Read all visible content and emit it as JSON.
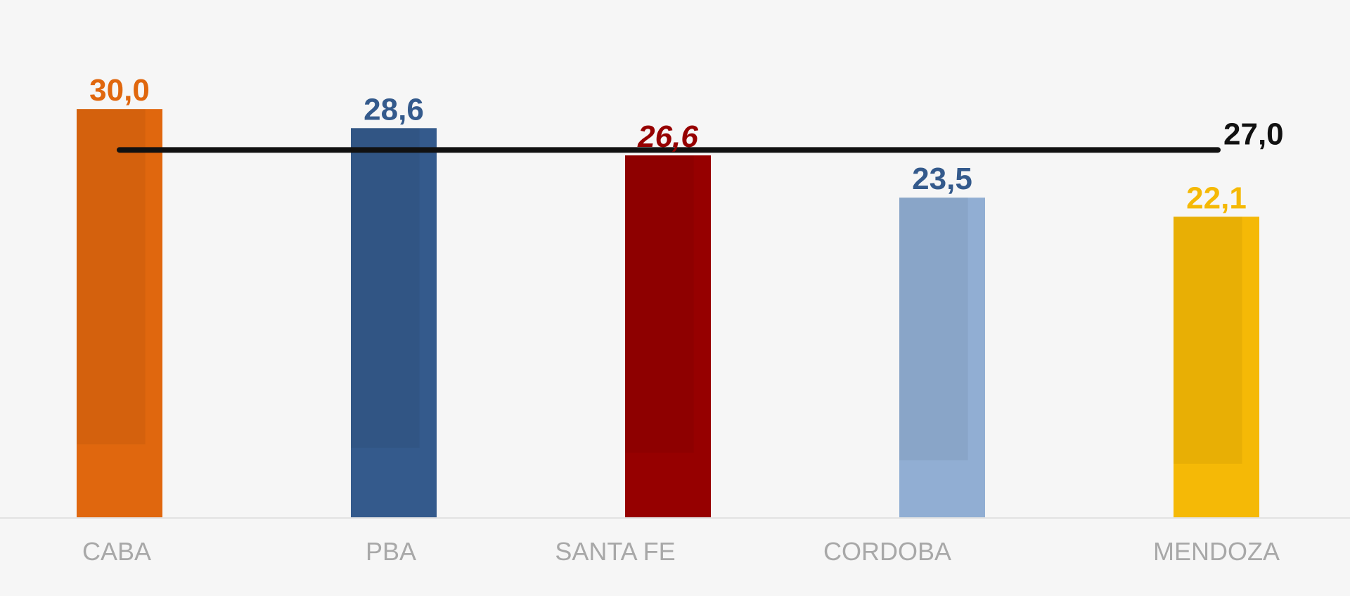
{
  "chart_data": {
    "type": "bar",
    "categories": [
      "CABA",
      "PBA",
      "SANTA FE",
      "CORDOBA",
      "MENDOZA"
    ],
    "values": [
      30.0,
      28.6,
      26.6,
      23.5,
      22.1
    ],
    "value_labels": [
      "30,0",
      "28,6",
      "26,6",
      "23,5",
      "22,1"
    ],
    "bar_colors": [
      "#e0670e",
      "#345a8c",
      "#960000",
      "#91aed3",
      "#f5b906"
    ],
    "label_colors": [
      "#e0670e",
      "#345a8c",
      "#960000",
      "#345a8c",
      "#f5b906"
    ],
    "label_italic": [
      false,
      false,
      true,
      false,
      false
    ],
    "reference_line": {
      "value": 27.0,
      "label": "27,0",
      "color": "#111111"
    },
    "ylim": [
      0,
      38
    ],
    "grid": false,
    "title": "",
    "xlabel": "",
    "ylabel": ""
  }
}
